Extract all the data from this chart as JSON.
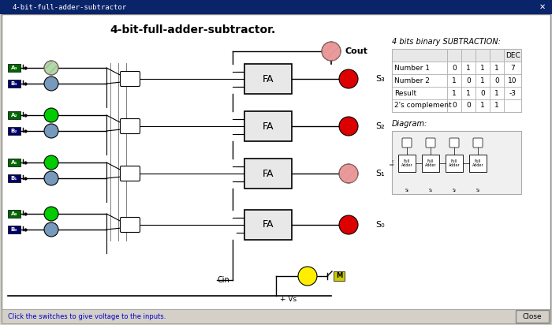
{
  "title": "4-bit-full-adder-subtractor.",
  "window_title": "4-bit-full-adder-subtractor",
  "bg_color": "#d4d0c8",
  "circuit_bg": "#ffffff",
  "titlebar_color": "#0a246a",
  "titlebar_text": "#ffffff",
  "bottom_text": "Click the switches to give voltage to the inputs.",
  "bottom_text_color": "#0000cc",
  "close_btn_text": "Close",
  "table_title": "4 bits binary SUBTRACTION:",
  "table_headers": [
    "",
    "",
    "",
    "",
    "DEC"
  ],
  "table_rows": [
    [
      "Number 1",
      "0",
      "1",
      "1",
      "1",
      "7"
    ],
    [
      "Number 2",
      "1",
      "0",
      "1",
      "0",
      "10"
    ],
    [
      "Result",
      "1",
      "1",
      "0",
      "1",
      "-3"
    ],
    [
      "2's complement",
      "0",
      "0",
      "1",
      "1",
      ""
    ]
  ],
  "diagram_label": "Diagram:",
  "fa_labels": [
    "FA",
    "FA",
    "FA",
    "FA"
  ],
  "s_labels": [
    "S₃",
    "S₂",
    "S₁",
    "S₀"
  ],
  "cout_label": "Cout",
  "cin_label": "Cin",
  "vs_label": "+ Vs",
  "m_label": "M",
  "a_labels": [
    "A₃",
    "A₂",
    "A₁",
    "A₀"
  ],
  "b_labels": [
    "B₃",
    "B₂",
    "B₁",
    "B₀"
  ],
  "green_circle_color": "#00cc00",
  "blue_circle_color": "#7799bb",
  "red_circle_color": "#dd0000",
  "pink_circle_color": "#ee9999",
  "yellow_circle_color": "#ffee00",
  "wire_color": "#000000",
  "switch_color": "#000000",
  "xor_fill": "#ffffff",
  "fa_box_fill": "#e8e8e8",
  "fa_box_edge": "#000000",
  "label_bg_green": "#006600",
  "label_bg_blue": "#000066"
}
